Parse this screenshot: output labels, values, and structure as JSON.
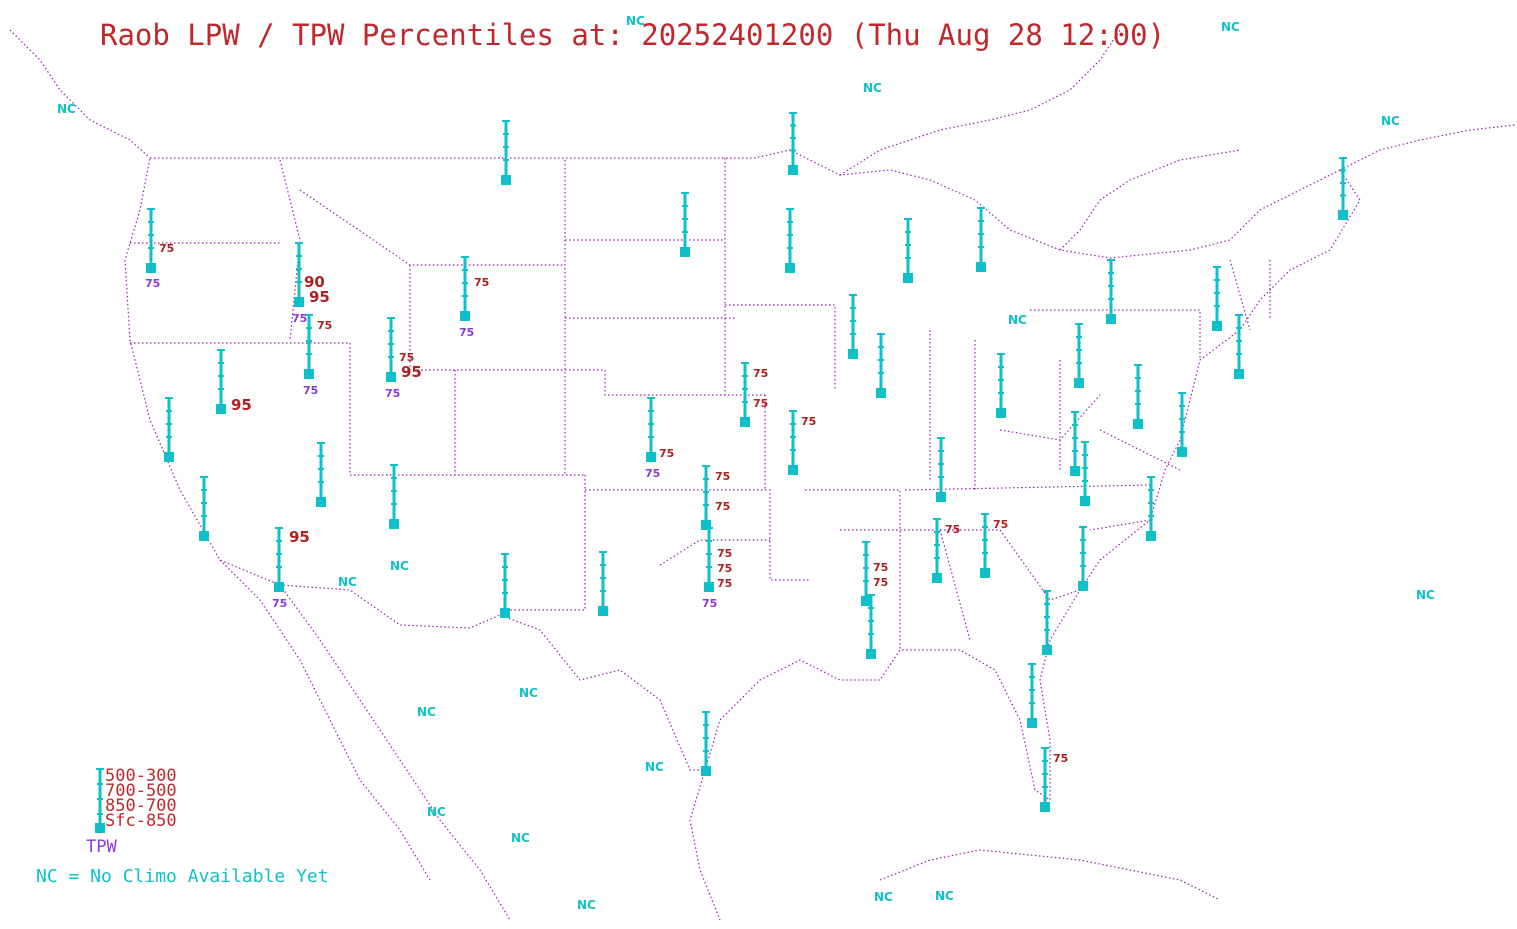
{
  "title": "Raob LPW / TPW Percentiles at: 20252401200 (Thu Aug 28 12:00)",
  "colors": {
    "station": "#10c0c8",
    "percentile": "#b02020",
    "tpw": "#8a3ad8",
    "border": "#9a1fb0",
    "title": "#c0282d"
  },
  "nc_text": "NC",
  "legend": {
    "layers": [
      "500-300",
      "700-500",
      "850-700",
      "Sfc-850"
    ],
    "tpw_label": "TPW",
    "nc_note": "NC = No Climo Available Yet"
  },
  "stations": [
    {
      "id": "quillayute",
      "pcts": [
        "75"
      ],
      "tpw": "75"
    },
    {
      "id": "boise",
      "pcts": [
        "90",
        "95"
      ],
      "tpw": "75"
    },
    {
      "id": "salt-lake",
      "pcts": [
        "75"
      ],
      "tpw": "75"
    },
    {
      "id": "elko",
      "pcts": [
        "95"
      ],
      "tpw": ""
    },
    {
      "id": "grand-junction",
      "pcts": [
        "75",
        "95"
      ],
      "tpw": "75"
    },
    {
      "id": "riverton",
      "pcts": [
        "75"
      ],
      "tpw": "75"
    },
    {
      "id": "phoenix",
      "pcts": [
        "95"
      ],
      "tpw": "75"
    },
    {
      "id": "dodge-city",
      "pcts": [
        "75"
      ],
      "tpw": "75"
    },
    {
      "id": "topeka",
      "pcts": [
        "75",
        "75"
      ],
      "tpw": ""
    },
    {
      "id": "springfield",
      "pcts": [
        "75"
      ],
      "tpw": ""
    },
    {
      "id": "norman",
      "pcts": [
        "75",
        "75"
      ],
      "tpw": ""
    },
    {
      "id": "fort-worth",
      "pcts": [
        "75",
        "75",
        "75"
      ],
      "tpw": "75"
    },
    {
      "id": "jackson",
      "pcts": [
        "75",
        "75"
      ],
      "tpw": ""
    },
    {
      "id": "birmingham",
      "pcts": [
        "75"
      ],
      "tpw": ""
    },
    {
      "id": "peachtree",
      "pcts": [
        "75"
      ],
      "tpw": ""
    },
    {
      "id": "miami",
      "pcts": [
        "75"
      ],
      "tpw": ""
    }
  ]
}
